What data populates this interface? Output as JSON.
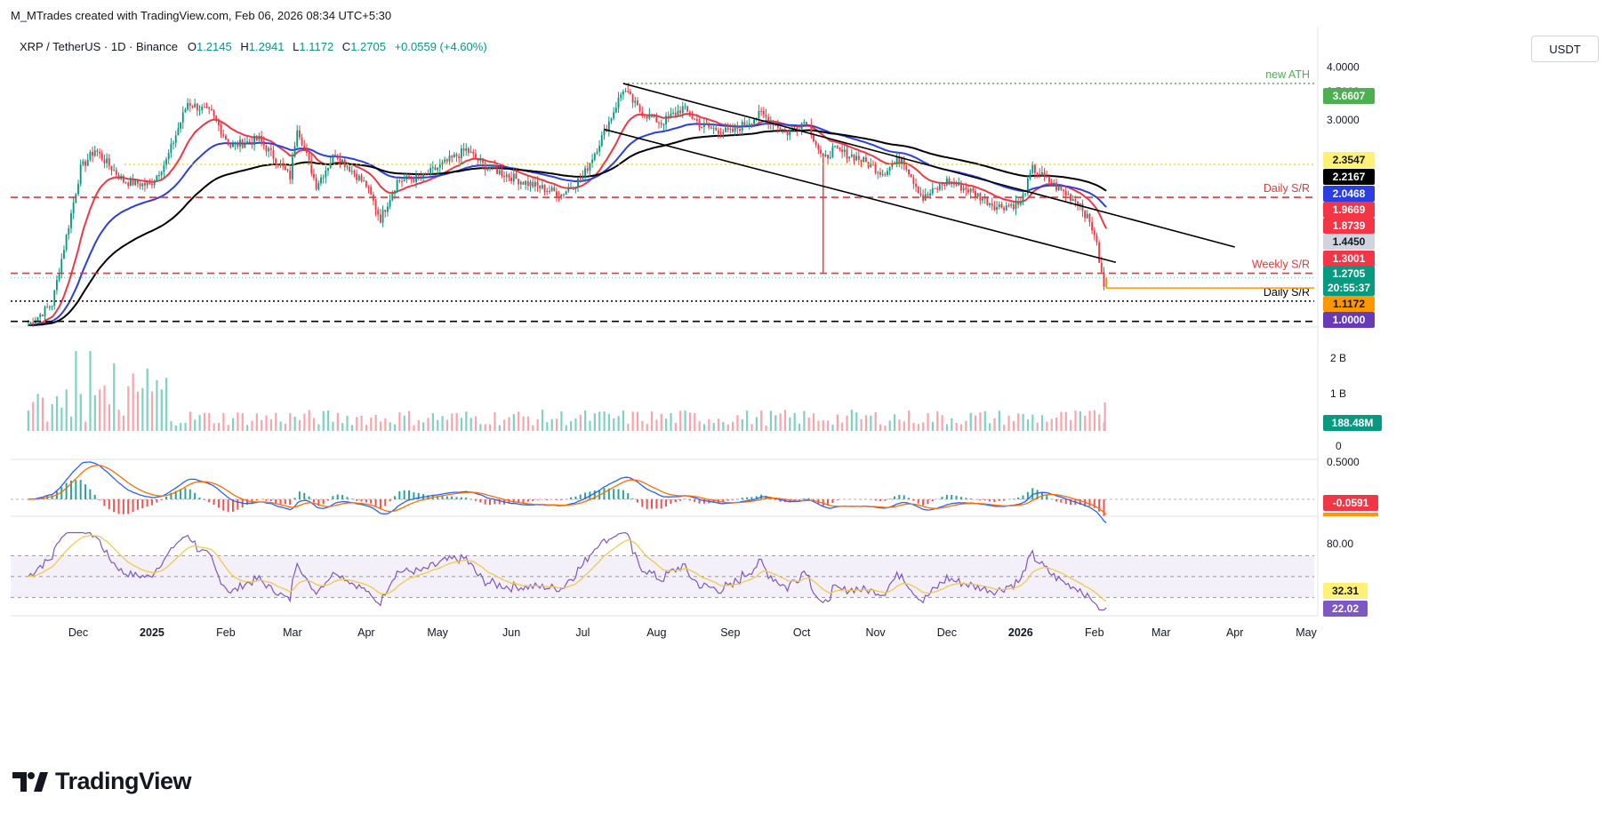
{
  "header": {
    "credit": "M_MTrades created with TradingView.com, Feb 06, 2026 08:34 UTC+5:30",
    "symbol": "XRP / TetherUS · 1D · Binance",
    "ohlc": [
      {
        "label": "O",
        "value": "1.2145"
      },
      {
        "label": "H",
        "value": "1.2941"
      },
      {
        "label": "L",
        "value": "1.1172"
      },
      {
        "label": "C",
        "value": "1.2705"
      },
      {
        "label": "",
        "value": "+0.0559 (+4.60%)"
      }
    ],
    "currency": "USDT"
  },
  "brand": "TradingView",
  "colors": {
    "up": "#089981",
    "down": "#f23645",
    "ema20": "#f23645",
    "ema50": "#2b3ee0",
    "ema100": "#000000",
    "rsi": "#7e57c2",
    "rsi_ma": "#f2c94c",
    "macd": "#2962ff",
    "signal": "#ff6d00",
    "ath": "#4caf50",
    "support": "#e53935"
  },
  "chart_data": {
    "type": "candlestick",
    "x_axis_labels": [
      "Dec",
      "2025",
      "Feb",
      "Mar",
      "Apr",
      "May",
      "Jun",
      "Jul",
      "Aug",
      "Sep",
      "Oct",
      "Nov",
      "Dec",
      "2026",
      "Feb",
      "Mar",
      "Apr",
      "May"
    ],
    "price_axis": {
      "scale": "log",
      "ticks": [
        "4.0000",
        "3.5000",
        "3.0000"
      ],
      "range": [
        0.97,
        4.15
      ]
    },
    "price_path": [
      [
        "2024-11-10",
        0.98
      ],
      [
        "2024-11-20",
        1.1
      ],
      [
        "2024-12-02",
        2.3
      ],
      [
        "2024-12-08",
        2.55
      ],
      [
        "2024-12-20",
        2.15
      ],
      [
        "2024-12-31",
        2.1
      ],
      [
        "2025-01-07",
        2.4
      ],
      [
        "2025-01-16",
        3.3
      ],
      [
        "2025-01-26",
        3.1
      ],
      [
        "2025-02-03",
        2.6
      ],
      [
        "2025-02-15",
        2.7
      ],
      [
        "2025-02-28",
        2.2
      ],
      [
        "2025-03-03",
        2.9
      ],
      [
        "2025-03-11",
        2.1
      ],
      [
        "2025-03-19",
        2.5
      ],
      [
        "2025-04-01",
        2.1
      ],
      [
        "2025-04-07",
        1.75
      ],
      [
        "2025-04-14",
        2.15
      ],
      [
        "2025-04-25",
        2.2
      ],
      [
        "2025-05-13",
        2.55
      ],
      [
        "2025-05-20",
        2.35
      ],
      [
        "2025-06-05",
        2.15
      ],
      [
        "2025-06-22",
        2.0
      ],
      [
        "2025-07-01",
        2.2
      ],
      [
        "2025-07-10",
        2.8
      ],
      [
        "2025-07-18",
        3.55
      ],
      [
        "2025-07-25",
        3.15
      ],
      [
        "2025-08-03",
        2.95
      ],
      [
        "2025-08-12",
        3.2
      ],
      [
        "2025-08-20",
        2.9
      ],
      [
        "2025-09-01",
        2.8
      ],
      [
        "2025-09-14",
        3.1
      ],
      [
        "2025-09-25",
        2.8
      ],
      [
        "2025-10-03",
        3.0
      ],
      [
        "2025-10-10",
        2.4
      ],
      [
        "2025-10-14",
        2.55
      ],
      [
        "2025-10-24",
        2.45
      ],
      [
        "2025-11-04",
        2.25
      ],
      [
        "2025-11-12",
        2.45
      ],
      [
        "2025-11-21",
        1.95
      ],
      [
        "2025-12-01",
        2.15
      ],
      [
        "2025-12-10",
        2.05
      ],
      [
        "2025-12-22",
        1.87
      ],
      [
        "2026-01-01",
        1.9
      ],
      [
        "2026-01-06",
        2.3
      ],
      [
        "2026-01-15",
        2.1
      ],
      [
        "2026-01-26",
        1.9
      ],
      [
        "2026-02-01",
        1.62
      ],
      [
        "2026-02-05",
        1.2
      ],
      [
        "2026-02-06",
        1.27
      ]
    ],
    "ath": {
      "price": 3.6607,
      "date": "2025-07-18"
    },
    "overlay_lines": [
      {
        "name": "EMA20",
        "color": "#f23645"
      },
      {
        "name": "EMA50",
        "color": "#2b3ee0"
      },
      {
        "name": "EMA100",
        "color": "#000000"
      }
    ],
    "levels": [
      {
        "label": "new ATH",
        "price": 3.6607,
        "color": "#4caf50",
        "style": "dotted"
      },
      {
        "label": "Daily S/R",
        "price": 1.9669,
        "color": "#e53935",
        "style": "dashed"
      },
      {
        "label": "Weekly S/R",
        "price": 1.3001,
        "color": "#e53935",
        "style": "dashed"
      },
      {
        "label": "Daily S/R",
        "price": 1.1172,
        "color": "#000000",
        "style": "dotted"
      },
      {
        "label": "",
        "price": 1.0,
        "color": "#000000",
        "style": "dashed"
      }
    ],
    "price_tags": [
      {
        "text": "3.6607",
        "bg": "#4caf50",
        "fg": "#ffffff",
        "price": 3.6607
      },
      {
        "text": "2.3547",
        "bg": "#fff176",
        "fg": "#131722",
        "price": 2.3547
      },
      {
        "text": "2.2167",
        "bg": "#000000",
        "fg": "#ffffff",
        "price": 2.2167
      },
      {
        "text": "2.0468",
        "bg": "#2b3ee0",
        "fg": "#ffffff",
        "price": 2.0468
      },
      {
        "text": "1.9669",
        "bg": "#f23645",
        "fg": "#ffffff",
        "price": 1.9669
      },
      {
        "text": "1.8739",
        "bg": "#f23645",
        "fg": "#ffffff",
        "price": 1.8739
      },
      {
        "text": "1.4450",
        "bg": "#d1d4dc",
        "fg": "#131722",
        "price": 1.445
      },
      {
        "text": "1.3001",
        "bg": "#f23645",
        "fg": "#ffffff",
        "price": 1.3001
      },
      {
        "text": "1.2705",
        "bg": "#089981",
        "fg": "#ffffff",
        "price": 1.2705
      },
      {
        "text": "20:55:37",
        "bg": "#089981",
        "fg": "#ffffff",
        "price": 1.2705
      },
      {
        "text": "1.1172",
        "bg": "#ff9800",
        "fg": "#131722",
        "price": 1.1172
      },
      {
        "text": "1.0000",
        "bg": "#673ab7",
        "fg": "#ffffff",
        "price": 1.0
      }
    ],
    "channel": {
      "upper": [
        [
          "2025-07-18",
          3.66
        ],
        [
          "2026-04-01",
          1.5
        ]
      ],
      "lower": [
        [
          "2025-07-10",
          2.85
        ],
        [
          "2026-02-10",
          1.38
        ]
      ]
    },
    "volume": {
      "ticks": [
        "2 B",
        "1 B",
        "0"
      ],
      "last": "188.48M"
    },
    "macd": {
      "ticks": [
        "0.5000"
      ],
      "histogram_value": "-0.0591"
    },
    "rsi": {
      "ticks": [
        "80.00"
      ],
      "value": "22.02",
      "ma_value": "32.31",
      "band": [
        30,
        70
      ]
    }
  }
}
